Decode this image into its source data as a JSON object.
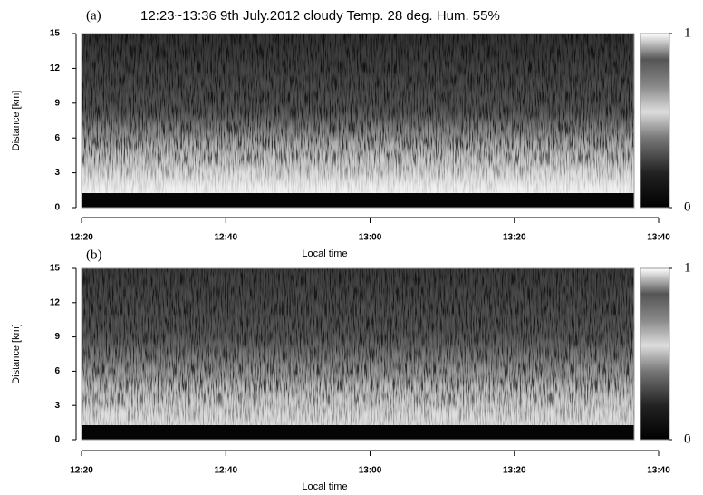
{
  "title": "12:23~13:36  9th  July.2012  cloudy  Temp. 28 deg. Hum. 55%",
  "chart_data": [
    {
      "type": "heatmap",
      "panel_label": "(a)",
      "xlabel": "Local time",
      "ylabel": "Distance [km]",
      "xlim": [
        740,
        820
      ],
      "xticks": [
        {
          "value": 740,
          "label": "12:20"
        },
        {
          "value": 760,
          "label": "12:40"
        },
        {
          "value": 780,
          "label": "13:00"
        },
        {
          "value": 800,
          "label": "13:20"
        },
        {
          "value": 820,
          "label": "13:40"
        }
      ],
      "ylim": [
        0,
        15
      ],
      "yticks": [
        0,
        3,
        6,
        9,
        12,
        15
      ],
      "colorbar": {
        "lim": [
          0,
          1
        ],
        "ticks": [
          0,
          1
        ]
      }
    },
    {
      "type": "heatmap",
      "panel_label": "(b)",
      "xlabel": "Local time",
      "ylabel": "Distance [km]",
      "xlim": [
        740,
        820
      ],
      "xticks": [
        {
          "value": 740,
          "label": "12:20"
        },
        {
          "value": 760,
          "label": "12:40"
        },
        {
          "value": 780,
          "label": "13:00"
        },
        {
          "value": 800,
          "label": "13:20"
        },
        {
          "value": 820,
          "label": "13:40"
        }
      ],
      "ylim": [
        0,
        15
      ],
      "yticks": [
        0,
        3,
        6,
        9,
        12,
        15
      ],
      "colorbar": {
        "lim": [
          0,
          1
        ],
        "ticks": [
          0,
          1
        ]
      }
    }
  ]
}
